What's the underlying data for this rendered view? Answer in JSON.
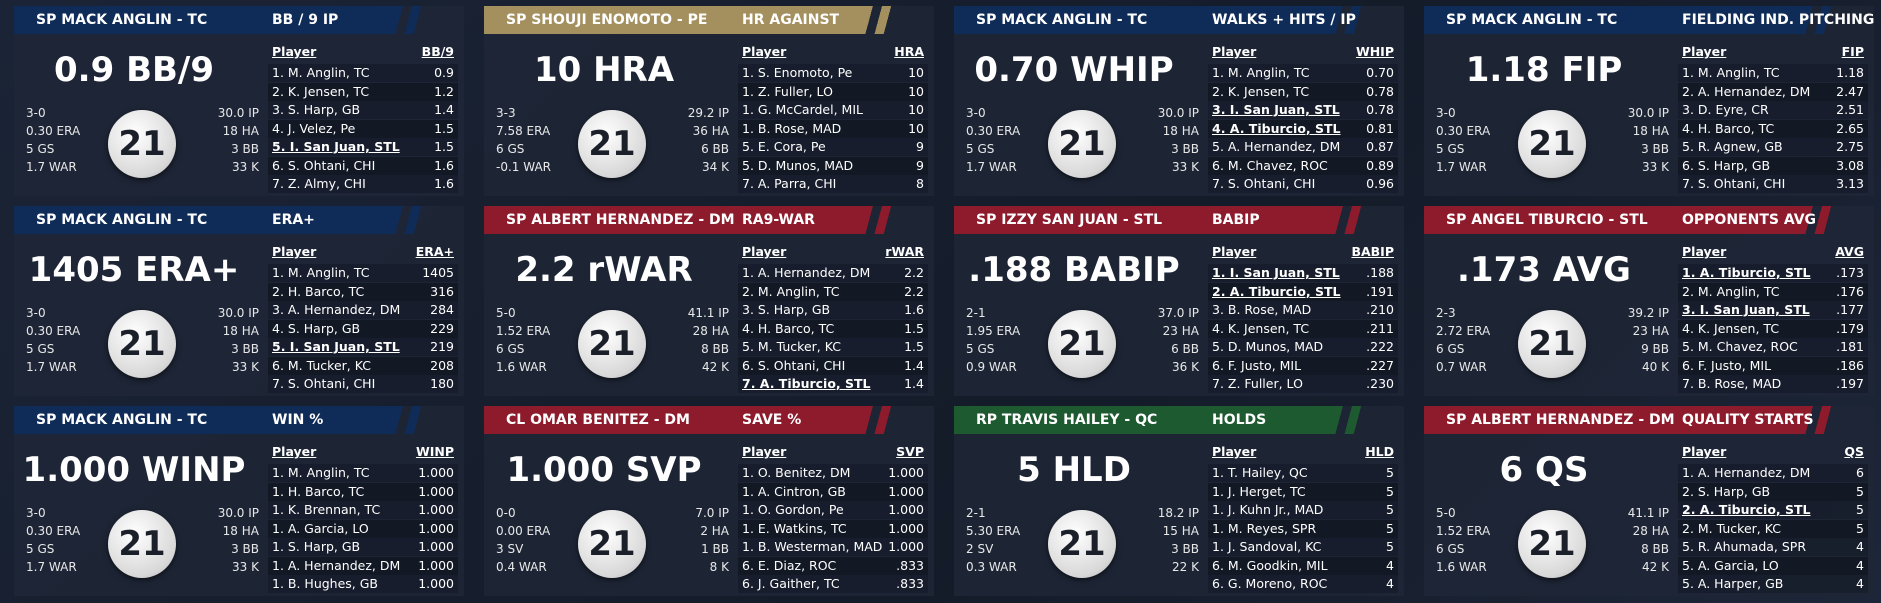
{
  "panels": [
    {
      "header": {
        "player": "SP MACK ANGLIN - TC",
        "stat": "BB / 9 IP"
      },
      "color": "#0f2b57",
      "big": "0.9 BB/9",
      "left": [
        "3-0",
        "0.30 ERA",
        "5 GS",
        "1.7 WAR"
      ],
      "right": [
        "30.0 IP",
        "18 HA",
        "3 BB",
        "33 K"
      ],
      "logo": "21",
      "table": {
        "columns": [
          "Player",
          "BB/9"
        ],
        "rows": [
          {
            "player": "1. M. Anglin, TC",
            "value": "0.9"
          },
          {
            "player": "2. K. Jensen, TC",
            "value": "1.2"
          },
          {
            "player": "3. S. Harp, GB",
            "value": "1.4"
          },
          {
            "player": "4. J. Velez, Pe",
            "value": "1.5"
          },
          {
            "player": "5. I. San Juan, STL",
            "value": "1.5",
            "underlined": true
          },
          {
            "player": "6. S. Ohtani, CHI",
            "value": "1.6"
          },
          {
            "player": "7. Z. Almy, CHI",
            "value": "1.6"
          }
        ]
      }
    },
    {
      "header": {
        "player": "SP SHOUJI ENOMOTO - PE",
        "stat": "HR AGAINST"
      },
      "color": "#a48f5e",
      "big": "10 HRA",
      "left": [
        "3-3",
        "7.58 ERA",
        "6 GS",
        "-0.1 WAR"
      ],
      "right": [
        "29.2 IP",
        "36 HA",
        "6 BB",
        "34 K"
      ],
      "logo": "21",
      "table": {
        "columns": [
          "Player",
          "HRA"
        ],
        "rows": [
          {
            "player": "1. S. Enomoto, Pe",
            "value": "10"
          },
          {
            "player": "1. Z. Fuller, LO",
            "value": "10"
          },
          {
            "player": "1. G. McCardel, MIL",
            "value": "10"
          },
          {
            "player": "1. B. Rose, MAD",
            "value": "10"
          },
          {
            "player": "5. E. Cora, Pe",
            "value": "9"
          },
          {
            "player": "5. D. Munos, MAD",
            "value": "9"
          },
          {
            "player": "7. A. Parra, CHI",
            "value": "8"
          }
        ]
      }
    },
    {
      "header": {
        "player": "SP MACK ANGLIN - TC",
        "stat": "WALKS + HITS / IP"
      },
      "color": "#0f2b57",
      "big": "0.70 WHIP",
      "left": [
        "3-0",
        "0.30 ERA",
        "5 GS",
        "1.7 WAR"
      ],
      "right": [
        "30.0 IP",
        "18 HA",
        "3 BB",
        "33 K"
      ],
      "logo": "21",
      "table": {
        "columns": [
          "Player",
          "WHIP"
        ],
        "rows": [
          {
            "player": "1. M. Anglin, TC",
            "value": "0.70"
          },
          {
            "player": "2. K. Jensen, TC",
            "value": "0.78"
          },
          {
            "player": "3. I. San Juan, STL",
            "value": "0.78",
            "underlined": true
          },
          {
            "player": "4. A. Tiburcio, STL",
            "value": "0.81",
            "underlined": true
          },
          {
            "player": "5. A. Hernandez, DM",
            "value": "0.87"
          },
          {
            "player": "6. M. Chavez, ROC",
            "value": "0.89"
          },
          {
            "player": "7. S. Ohtani, CHI",
            "value": "0.96"
          }
        ]
      }
    },
    {
      "header": {
        "player": "SP MACK ANGLIN - TC",
        "stat": "FIELDING IND. PITCHING"
      },
      "color": "#0f2b57",
      "big": "1.18 FIP",
      "left": [
        "3-0",
        "0.30 ERA",
        "5 GS",
        "1.7 WAR"
      ],
      "right": [
        "30.0 IP",
        "18 HA",
        "3 BB",
        "33 K"
      ],
      "logo": "21",
      "table": {
        "columns": [
          "Player",
          "FIP"
        ],
        "rows": [
          {
            "player": "1. M. Anglin, TC",
            "value": "1.18"
          },
          {
            "player": "2. A. Hernandez, DM",
            "value": "2.47"
          },
          {
            "player": "3. D. Eyre, CR",
            "value": "2.51"
          },
          {
            "player": "4. H. Barco, TC",
            "value": "2.65"
          },
          {
            "player": "5. R. Agnew, GB",
            "value": "2.75"
          },
          {
            "player": "6. S. Harp, GB",
            "value": "3.08"
          },
          {
            "player": "7. S. Ohtani, CHI",
            "value": "3.13"
          }
        ]
      }
    },
    {
      "header": {
        "player": "SP MACK ANGLIN - TC",
        "stat": "ERA+"
      },
      "color": "#0f2b57",
      "big": "1405 ERA+",
      "left": [
        "3-0",
        "0.30 ERA",
        "5 GS",
        "1.7 WAR"
      ],
      "right": [
        "30.0 IP",
        "18 HA",
        "3 BB",
        "33 K"
      ],
      "logo": "21",
      "table": {
        "columns": [
          "Player",
          "ERA+"
        ],
        "rows": [
          {
            "player": "1. M. Anglin, TC",
            "value": "1405"
          },
          {
            "player": "2. H. Barco, TC",
            "value": "316"
          },
          {
            "player": "3. A. Hernandez, DM",
            "value": "284"
          },
          {
            "player": "4. S. Harp, GB",
            "value": "229"
          },
          {
            "player": "5. I. San Juan, STL",
            "value": "219",
            "underlined": true
          },
          {
            "player": "6. M. Tucker, KC",
            "value": "208"
          },
          {
            "player": "7. S. Ohtani, CHI",
            "value": "180"
          }
        ]
      }
    },
    {
      "header": {
        "player": "SP ALBERT HERNANDEZ - DM",
        "stat": "RA9-WAR"
      },
      "color": "#8e1b2c",
      "big": "2.2 rWAR",
      "left": [
        "5-0",
        "1.52 ERA",
        "6 GS",
        "1.6 WAR"
      ],
      "right": [
        "41.1 IP",
        "28 HA",
        "8 BB",
        "42 K"
      ],
      "logo": "21",
      "table": {
        "columns": [
          "Player",
          "rWAR"
        ],
        "rows": [
          {
            "player": "1. A. Hernandez, DM",
            "value": "2.2"
          },
          {
            "player": "2. M. Anglin, TC",
            "value": "2.2"
          },
          {
            "player": "3. S. Harp, GB",
            "value": "1.6"
          },
          {
            "player": "4. H. Barco, TC",
            "value": "1.5"
          },
          {
            "player": "5. M. Tucker, KC",
            "value": "1.5"
          },
          {
            "player": "6. S. Ohtani, CHI",
            "value": "1.4"
          },
          {
            "player": "7. A. Tiburcio, STL",
            "value": "1.4",
            "underlined": true
          }
        ]
      }
    },
    {
      "header": {
        "player": "SP IZZY SAN JUAN - STL",
        "stat": "BABIP"
      },
      "color": "#8e1b2c",
      "big": ".188 BABIP",
      "left": [
        "2-1",
        "1.95 ERA",
        "5 GS",
        "0.9 WAR"
      ],
      "right": [
        "37.0 IP",
        "23 HA",
        "6 BB",
        "36 K"
      ],
      "logo": "21",
      "table": {
        "columns": [
          "Player",
          "BABIP"
        ],
        "rows": [
          {
            "player": "1. I. San Juan, STL",
            "value": ".188",
            "underlined": true
          },
          {
            "player": "2. A. Tiburcio, STL",
            "value": ".191",
            "underlined": true
          },
          {
            "player": "3. B. Rose, MAD",
            "value": ".210"
          },
          {
            "player": "4. K. Jensen, TC",
            "value": ".211"
          },
          {
            "player": "5. D. Munos, MAD",
            "value": ".222"
          },
          {
            "player": "6. F. Justo, MIL",
            "value": ".227"
          },
          {
            "player": "7. Z. Fuller, LO",
            "value": ".230"
          }
        ]
      }
    },
    {
      "header": {
        "player": "SP ANGEL TIBURCIO - STL",
        "stat": "OPPONENTS AVG"
      },
      "color": "#8e1b2c",
      "big": ".173 AVG",
      "left": [
        "2-3",
        "2.72 ERA",
        "6 GS",
        "0.7 WAR"
      ],
      "right": [
        "39.2 IP",
        "23 HA",
        "9 BB",
        "40 K"
      ],
      "logo": "21",
      "table": {
        "columns": [
          "Player",
          "AVG"
        ],
        "rows": [
          {
            "player": "1. A. Tiburcio, STL",
            "value": ".173",
            "underlined": true
          },
          {
            "player": "2. M. Anglin, TC",
            "value": ".176"
          },
          {
            "player": "3. I. San Juan, STL",
            "value": ".177",
            "underlined": true
          },
          {
            "player": "4. K. Jensen, TC",
            "value": ".179"
          },
          {
            "player": "5. M. Chavez, ROC",
            "value": ".181"
          },
          {
            "player": "6. F. Justo, MIL",
            "value": ".186"
          },
          {
            "player": "7. B. Rose, MAD",
            "value": ".197"
          }
        ]
      }
    },
    {
      "header": {
        "player": "SP MACK ANGLIN - TC",
        "stat": "WIN %"
      },
      "color": "#0f2b57",
      "big": "1.000 WINP",
      "left": [
        "3-0",
        "0.30 ERA",
        "5 GS",
        "1.7 WAR"
      ],
      "right": [
        "30.0 IP",
        "18 HA",
        "3 BB",
        "33 K"
      ],
      "logo": "21",
      "table": {
        "columns": [
          "Player",
          "WINP"
        ],
        "rows": [
          {
            "player": "1. M. Anglin, TC",
            "value": "1.000"
          },
          {
            "player": "1. H. Barco, TC",
            "value": "1.000"
          },
          {
            "player": "1. K. Brennan, TC",
            "value": "1.000"
          },
          {
            "player": "1. A. Garcia, LO",
            "value": "1.000"
          },
          {
            "player": "1. S. Harp, GB",
            "value": "1.000"
          },
          {
            "player": "1. A. Hernandez, DM",
            "value": "1.000"
          },
          {
            "player": "1. B. Hughes, GB",
            "value": "1.000"
          }
        ]
      }
    },
    {
      "header": {
        "player": "CL OMAR BENITEZ - DM",
        "stat": "SAVE %"
      },
      "color": "#8e1b2c",
      "big": "1.000 SVP",
      "left": [
        "0-0",
        "0.00 ERA",
        "3 SV",
        "0.4 WAR"
      ],
      "right": [
        "7.0 IP",
        "2 HA",
        "1 BB",
        "8 K"
      ],
      "logo": "21",
      "table": {
        "columns": [
          "Player",
          "SVP"
        ],
        "rows": [
          {
            "player": "1. O. Benitez, DM",
            "value": "1.000"
          },
          {
            "player": "1. A. Cintron, GB",
            "value": "1.000"
          },
          {
            "player": "1. O. Gordon, Pe",
            "value": "1.000"
          },
          {
            "player": "1. E. Watkins, TC",
            "value": "1.000"
          },
          {
            "player": "1. B. Westerman, MAD",
            "value": "1.000"
          },
          {
            "player": "6. E. Diaz, ROC",
            "value": ".833"
          },
          {
            "player": "6. J. Gaither, TC",
            "value": ".833"
          }
        ]
      }
    },
    {
      "header": {
        "player": "RP TRAVIS HAILEY - QC",
        "stat": "HOLDS"
      },
      "color": "#1d5a2f",
      "big": "5 HLD",
      "left": [
        "2-1",
        "5.30 ERA",
        "2 SV",
        "0.3 WAR"
      ],
      "right": [
        "18.2 IP",
        "15 HA",
        "3 BB",
        "22 K"
      ],
      "logo": "21",
      "table": {
        "columns": [
          "Player",
          "HLD"
        ],
        "rows": [
          {
            "player": "1. T. Hailey, QC",
            "value": "5"
          },
          {
            "player": "1. J. Herget, TC",
            "value": "5"
          },
          {
            "player": "1. J. Kuhn Jr., MAD",
            "value": "5"
          },
          {
            "player": "1. M. Reyes, SPR",
            "value": "5"
          },
          {
            "player": "1. J. Sandoval, KC",
            "value": "5"
          },
          {
            "player": "6. M. Goodkin, MIL",
            "value": "4"
          },
          {
            "player": "6. G. Moreno, ROC",
            "value": "4"
          }
        ]
      }
    },
    {
      "header": {
        "player": "SP ALBERT HERNANDEZ - DM",
        "stat": "QUALITY STARTS"
      },
      "color": "#8e1b2c",
      "big": "6 QS",
      "left": [
        "5-0",
        "1.52 ERA",
        "6 GS",
        "1.6 WAR"
      ],
      "right": [
        "41.1 IP",
        "28 HA",
        "8 BB",
        "42 K"
      ],
      "logo": "21",
      "table": {
        "columns": [
          "Player",
          "QS"
        ],
        "rows": [
          {
            "player": "1. A. Hernandez, DM",
            "value": "6"
          },
          {
            "player": "2. S. Harp, GB",
            "value": "5"
          },
          {
            "player": "2. A. Tiburcio, STL",
            "value": "5",
            "underlined": true
          },
          {
            "player": "2. M. Tucker, KC",
            "value": "5"
          },
          {
            "player": "5. R. Ahumada, SPR",
            "value": "4"
          },
          {
            "player": "5. A. Garcia, LO",
            "value": "4"
          },
          {
            "player": "5. A. Harper, GB",
            "value": "4"
          }
        ]
      }
    }
  ]
}
